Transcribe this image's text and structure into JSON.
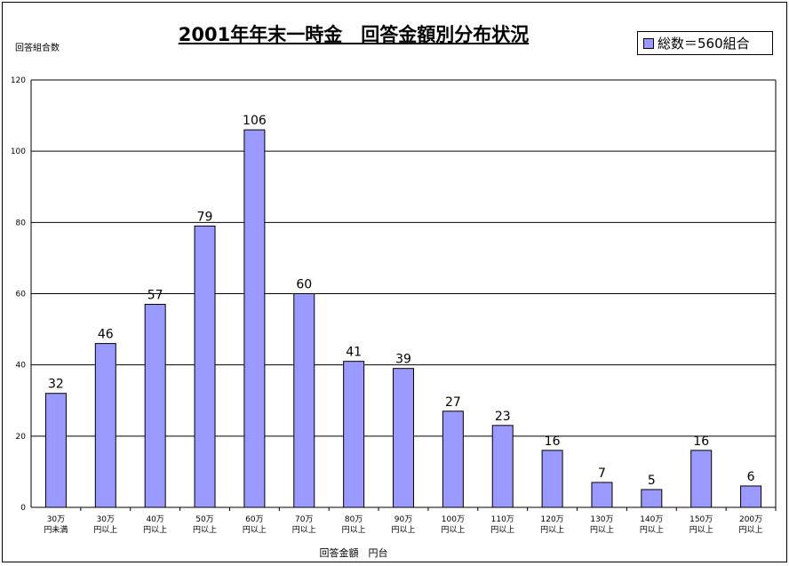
{
  "chart_data": {
    "type": "bar",
    "title": "2001年年末一時金　回答金額別分布状況",
    "ylabel": "回答組合数",
    "xlabel": "回答金額　円台",
    "legend": "総数＝560組合",
    "legend_position": "top-right",
    "ylim": [
      0,
      120
    ],
    "yticks": [
      0,
      20,
      40,
      60,
      80,
      100,
      120
    ],
    "grid": true,
    "bar_color": "#9999ff",
    "categories": [
      [
        "30万",
        "円未満"
      ],
      [
        "30万",
        "円以上"
      ],
      [
        "40万",
        "円以上"
      ],
      [
        "50万",
        "円以上"
      ],
      [
        "60万",
        "円以上"
      ],
      [
        "70万",
        "円以上"
      ],
      [
        "80万",
        "円以上"
      ],
      [
        "90万",
        "円以上"
      ],
      [
        "100万",
        "円以上"
      ],
      [
        "110万",
        "円以上"
      ],
      [
        "120万",
        "円以上"
      ],
      [
        "130万",
        "円以上"
      ],
      [
        "140万",
        "円以上"
      ],
      [
        "150万",
        "円以上"
      ],
      [
        "200万",
        "円以上"
      ]
    ],
    "values": [
      32,
      46,
      57,
      79,
      106,
      60,
      41,
      39,
      27,
      23,
      16,
      7,
      5,
      16,
      6
    ]
  }
}
